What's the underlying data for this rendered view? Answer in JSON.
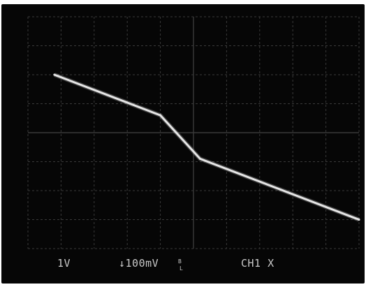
{
  "screen": {
    "background_color": "#060606",
    "graticule_color": "#3a3a3a",
    "trace_color": "#e6e6e6",
    "text_color": "#c9c9c9"
  },
  "readouts": {
    "ch1_scale": "1V",
    "ch2_scale": "↓100mV",
    "mode_top": "B",
    "mode_bottom": "L",
    "channel_mode": "CH1 X"
  },
  "chart_data": {
    "type": "line",
    "grid": true,
    "xlim": [
      0,
      10
    ],
    "ylim": [
      0,
      8
    ],
    "series": [
      {
        "x": [
          0.8,
          4.0,
          5.2,
          10.0
        ],
        "y": [
          6.0,
          4.6,
          3.1,
          1.0
        ]
      }
    ]
  }
}
